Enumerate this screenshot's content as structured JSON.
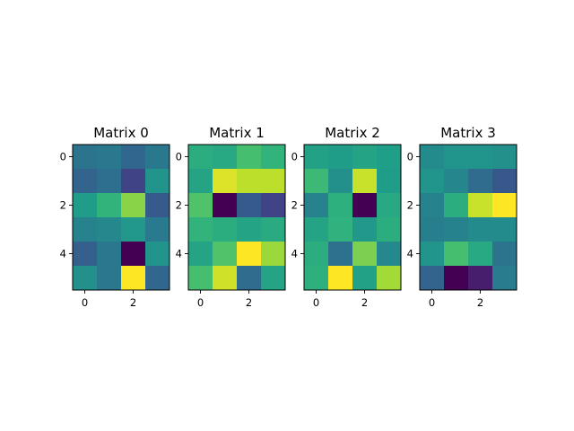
{
  "chart_data": [
    {
      "type": "heatmap",
      "title": "Matrix 0",
      "xticks": [
        0,
        2
      ],
      "yticks": [
        0,
        2,
        4
      ],
      "colormap": "viridis",
      "values": [
        [
          0.38,
          0.4,
          0.33,
          0.4
        ],
        [
          0.32,
          0.36,
          0.2,
          0.52
        ],
        [
          0.55,
          0.65,
          0.82,
          0.28
        ],
        [
          0.45,
          0.47,
          0.53,
          0.41
        ],
        [
          0.3,
          0.4,
          0.0,
          0.52
        ],
        [
          0.5,
          0.4,
          1.0,
          0.33
        ]
      ]
    },
    {
      "type": "heatmap",
      "title": "Matrix 1",
      "xticks": [
        0,
        2
      ],
      "yticks": [
        0,
        2,
        4
      ],
      "colormap": "viridis",
      "values": [
        [
          0.62,
          0.6,
          0.7,
          0.65
        ],
        [
          0.58,
          0.95,
          0.9,
          0.9
        ],
        [
          0.72,
          0.0,
          0.28,
          0.2
        ],
        [
          0.65,
          0.62,
          0.58,
          0.61
        ],
        [
          0.58,
          0.72,
          1.0,
          0.85
        ],
        [
          0.7,
          0.93,
          0.35,
          0.58
        ]
      ]
    },
    {
      "type": "heatmap",
      "title": "Matrix 2",
      "xticks": [
        0,
        2
      ],
      "yticks": [
        0,
        2,
        4
      ],
      "colormap": "viridis",
      "values": [
        [
          0.57,
          0.55,
          0.58,
          0.56
        ],
        [
          0.68,
          0.5,
          0.92,
          0.55
        ],
        [
          0.45,
          0.63,
          0.0,
          0.6
        ],
        [
          0.58,
          0.64,
          0.53,
          0.62
        ],
        [
          0.62,
          0.37,
          0.8,
          0.47
        ],
        [
          0.63,
          1.0,
          0.57,
          0.86
        ]
      ]
    },
    {
      "type": "heatmap",
      "title": "Matrix 3",
      "xticks": [
        0,
        2
      ],
      "yticks": [
        0,
        2,
        4
      ],
      "colormap": "viridis",
      "values": [
        [
          0.48,
          0.52,
          0.52,
          0.5
        ],
        [
          0.52,
          0.46,
          0.35,
          0.27
        ],
        [
          0.45,
          0.62,
          0.92,
          1.0
        ],
        [
          0.43,
          0.45,
          0.48,
          0.48
        ],
        [
          0.52,
          0.7,
          0.6,
          0.38
        ],
        [
          0.32,
          0.0,
          0.08,
          0.42
        ]
      ]
    }
  ]
}
